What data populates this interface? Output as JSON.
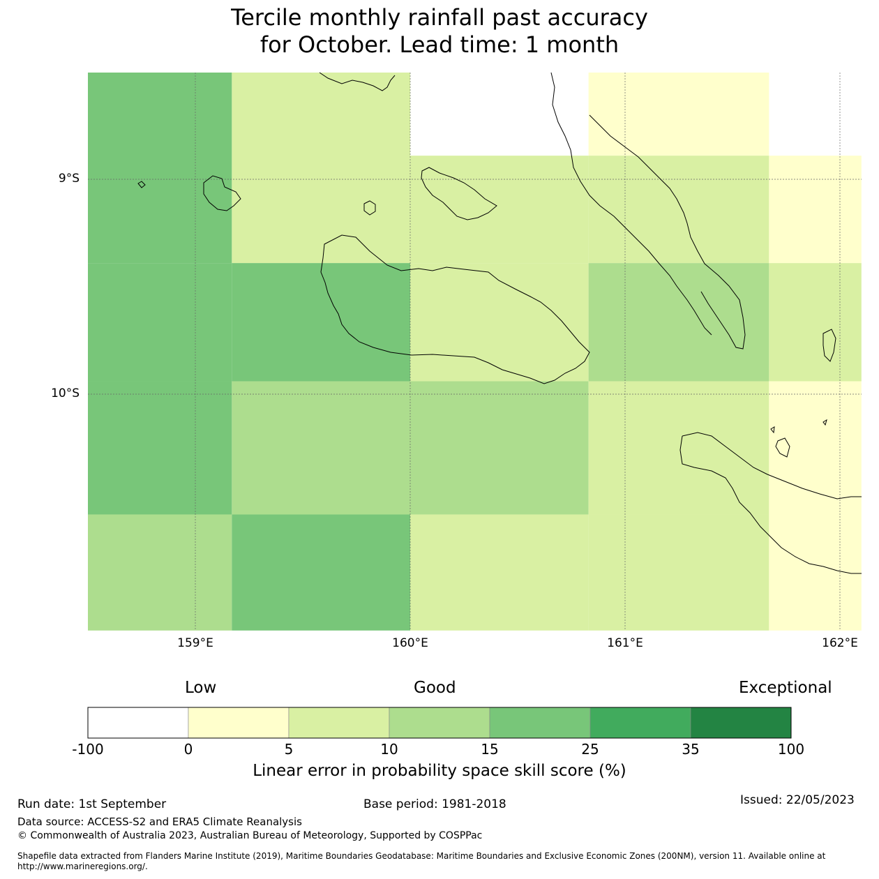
{
  "title_line1": "Tercile monthly rainfall past accuracy",
  "title_line2": "for October. Lead time: 1 month",
  "map": {
    "lat_labels": [
      "9°S",
      "10°S"
    ],
    "lon_labels": [
      "159°E",
      "160°E",
      "161°E",
      "162°E"
    ],
    "cells": [
      {
        "lon": [
          158.5,
          159.17
        ],
        "lat": [
          -8.5,
          -9.39
        ],
        "category": "15-25"
      },
      {
        "lon": [
          159.17,
          160.0
        ],
        "lat": [
          -8.5,
          -9.39
        ],
        "category": "5-10"
      },
      {
        "lon": [
          160.0,
          160.83
        ],
        "lat": [
          -8.89,
          -9.39
        ],
        "category": "5-10"
      },
      {
        "lon": [
          160.83,
          161.67
        ],
        "lat": [
          -8.5,
          -8.89
        ],
        "category": "0-5"
      },
      {
        "lon": [
          160.83,
          161.67
        ],
        "lat": [
          -8.89,
          -9.39
        ],
        "category": "5-10"
      },
      {
        "lon": [
          161.67,
          162.1
        ],
        "lat": [
          -8.89,
          -9.39
        ],
        "category": "0-5"
      },
      {
        "lon": [
          158.5,
          159.17
        ],
        "lat": [
          -9.39,
          -9.94
        ],
        "category": "15-25"
      },
      {
        "lon": [
          159.17,
          160.0
        ],
        "lat": [
          -9.39,
          -9.94
        ],
        "category": "15-25"
      },
      {
        "lon": [
          160.0,
          160.83
        ],
        "lat": [
          -9.39,
          -9.94
        ],
        "category": "5-10"
      },
      {
        "lon": [
          160.83,
          161.67
        ],
        "lat": [
          -9.39,
          -9.94
        ],
        "category": "10-15"
      },
      {
        "lon": [
          161.67,
          162.1
        ],
        "lat": [
          -9.39,
          -9.94
        ],
        "category": "5-10"
      },
      {
        "lon": [
          158.5,
          159.17
        ],
        "lat": [
          -9.94,
          -10.56
        ],
        "category": "15-25"
      },
      {
        "lon": [
          159.17,
          160.0
        ],
        "lat": [
          -9.94,
          -10.56
        ],
        "category": "10-15"
      },
      {
        "lon": [
          160.0,
          160.83
        ],
        "lat": [
          -9.94,
          -10.56
        ],
        "category": "10-15"
      },
      {
        "lon": [
          160.83,
          161.67
        ],
        "lat": [
          -9.94,
          -10.56
        ],
        "category": "5-10"
      },
      {
        "lon": [
          161.67,
          162.1
        ],
        "lat": [
          -9.94,
          -10.56
        ],
        "category": "0-5"
      },
      {
        "lon": [
          158.5,
          159.17
        ],
        "lat": [
          -10.56,
          -11.1
        ],
        "category": "10-15"
      },
      {
        "lon": [
          159.17,
          160.0
        ],
        "lat": [
          -10.56,
          -11.1
        ],
        "category": "15-25"
      },
      {
        "lon": [
          160.0,
          160.83
        ],
        "lat": [
          -10.56,
          -11.1
        ],
        "category": "5-10"
      },
      {
        "lon": [
          160.83,
          161.67
        ],
        "lat": [
          -10.56,
          -11.1
        ],
        "category": "5-10"
      },
      {
        "lon": [
          161.67,
          162.1
        ],
        "lat": [
          -10.56,
          -11.1
        ],
        "category": "0-5"
      }
    ]
  },
  "colorbar": {
    "categories": [
      {
        "range": "-100 to 0",
        "color": "#ffffff"
      },
      {
        "range": "0 to 5",
        "color": "#ffffcc"
      },
      {
        "range": "5 to 10",
        "color": "#d9f0a3"
      },
      {
        "range": "10 to 15",
        "color": "#addd8e"
      },
      {
        "range": "15 to 25",
        "color": "#78c679"
      },
      {
        "range": "25 to 35",
        "color": "#41ab5d"
      },
      {
        "range": "35 to 100",
        "color": "#238443"
      }
    ],
    "ticks": [
      "-100",
      "0",
      "5",
      "10",
      "15",
      "25",
      "35",
      "100"
    ],
    "label_low": "Low",
    "label_good": "Good",
    "label_exceptional": "Exceptional",
    "title": "Linear error in probability space skill score (%)"
  },
  "footer": {
    "run_date": "Run date: 1st September",
    "base_period": "Base period: 1981-2018",
    "issued": "Issued: 22/05/2023",
    "data_source": "Data source: ACCESS-S2 and ERA5 Climate Reanalysis",
    "copyright": "© Commonwealth of Australia 2023, Australian Bureau of Meteorology, Supported by COSPPac",
    "shapefile_line1": "Shapefile data extracted from Flanders Marine Institute (2019), Maritime Boundaries Geodatabase: Maritime Boundaries and Exclusive Economic Zones (200NM), version 11. Available online at",
    "shapefile_line2": "http://www.marineregions.org/."
  }
}
